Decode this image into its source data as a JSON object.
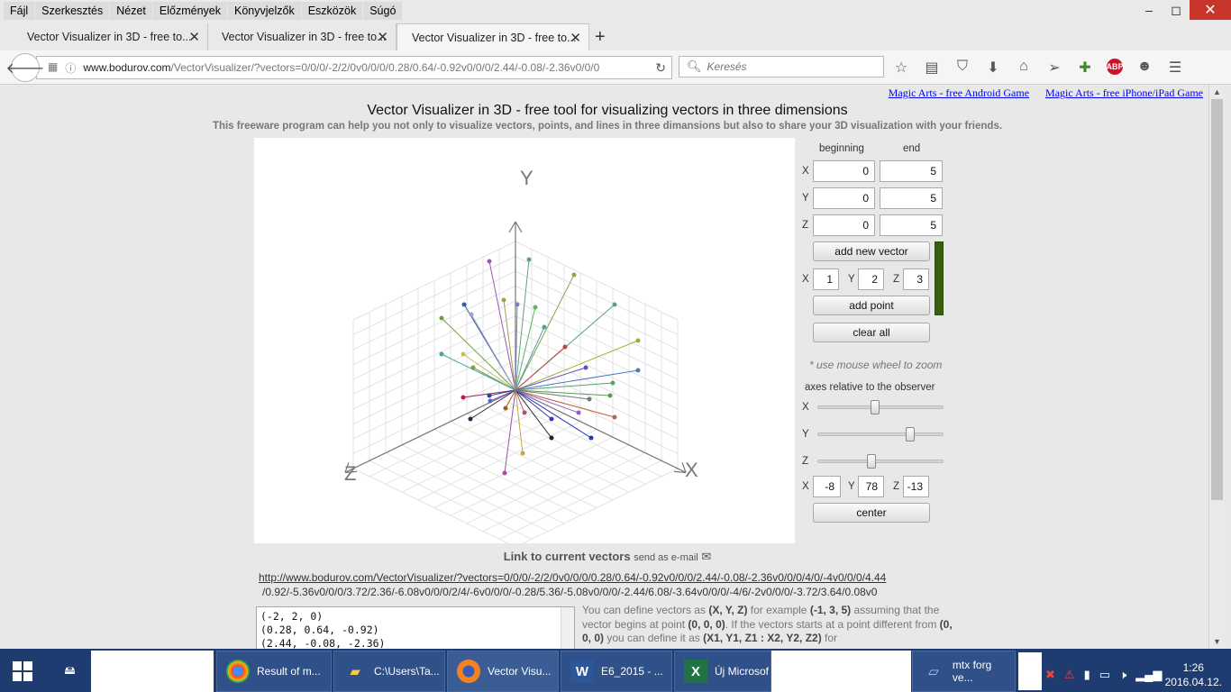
{
  "menubar": {
    "items": [
      "Fájl",
      "Szerkesztés",
      "Nézet",
      "Előzmények",
      "Könyvjelzők",
      "Eszközök",
      "Súgó"
    ]
  },
  "window": {
    "minimize": "–",
    "maximize": "◻",
    "close": "✕"
  },
  "tabs": [
    {
      "label": "Vector Visualizer in 3D - free to..."
    },
    {
      "label": "Vector Visualizer in 3D - free to..."
    },
    {
      "label": "Vector Visualizer in 3D - free to..."
    }
  ],
  "nav": {
    "url_domain": "www.bodurov.com",
    "url_path": "/VectorVisualizer/?vectors=0/0/0/-2/2/0v0/0/0/0.28/0.64/-0.92v0/0/0/2.44/-0.08/-2.36v0/0/0",
    "search_placeholder": "Keresés"
  },
  "page": {
    "toplink1": "Magic Arts - free Android Game",
    "toplink2": "Magic Arts - free iPhone/iPad Game",
    "title": "Vector Visualizer in 3D - free tool for visualizing vectors in three dimensions",
    "subtitle": "This freeware program can help you not only to visualize vectors, points, and lines in three dimansions but also to share your 3D visualization with your friends."
  },
  "axes3d": {
    "x": "X",
    "y": "Y",
    "z": "Z"
  },
  "panel": {
    "beginning_label": "beginning",
    "end_label": "end",
    "x_label": "X",
    "y_label": "Y",
    "z_label": "Z",
    "begin_x": "0",
    "begin_y": "0",
    "begin_z": "0",
    "end_x": "5",
    "end_y": "5",
    "end_z": "5",
    "add_vector": "add new vector",
    "point_x": "1",
    "point_y": "2",
    "point_z": "3",
    "add_point": "add point",
    "clear_all": "clear all",
    "zoom_hint": "* use mouse wheel to zoom",
    "axes_relative": "axes relative to the observer",
    "slider_x": 0.45,
    "slider_y": 0.75,
    "slider_z": 0.42,
    "rot_x": "-8",
    "rot_y": "78",
    "rot_z": "-13",
    "center": "center",
    "swatch_color": "#385f10"
  },
  "link": {
    "heading": "Link to current vectors",
    "email": "send as e-mail",
    "url_line1": "http://www.bodurov.com/VectorVisualizer/?vectors=0/0/0/-2/2/0v0/0/0/0.28/0.64/-0.92v0/0/0/2.44/-0.08/-2.36v0/0/0/4/0/-4v0/0/0/4.44",
    "url_line2": "/0.92/-5.36v0/0/0/3.72/2.36/-6.08v0/0/0/2/4/-6v0/0/0/-0.28/5.36/-5.08v0/0/0/-2.44/6.08/-3.64v0/0/0/-4/6/-2v0/0/0/-3.72/3.64/0.08v0"
  },
  "vector_list": [
    "(-2, 2, 0)",
    "(0.28, 0.64, -0.92)",
    "(2.44, -0.08, -2.36)"
  ],
  "description": {
    "t1": "You can define vectors as ",
    "b1": "(X, Y, Z)",
    "t2": " for example ",
    "b2": "(-1, 3, 5)",
    "t3": " assuming that the vector begins at point ",
    "b3": "(0, 0, 0)",
    "t4": ". If the vectors starts at a point different from ",
    "b4": "(0, 0, 0)",
    "t5": " you can define it as ",
    "b5": "(X1, Y1, Z1 : X2, Y2, Z2)",
    "t6": " for"
  },
  "taskbar": {
    "items": [
      "Result of m...",
      "C:\\Users\\Ta...",
      "Vector Visu...",
      "E6_2015 - ...",
      "Új Microsof",
      "mtx forg ve..."
    ],
    "time": "1:26",
    "date": "2016.04.12."
  }
}
